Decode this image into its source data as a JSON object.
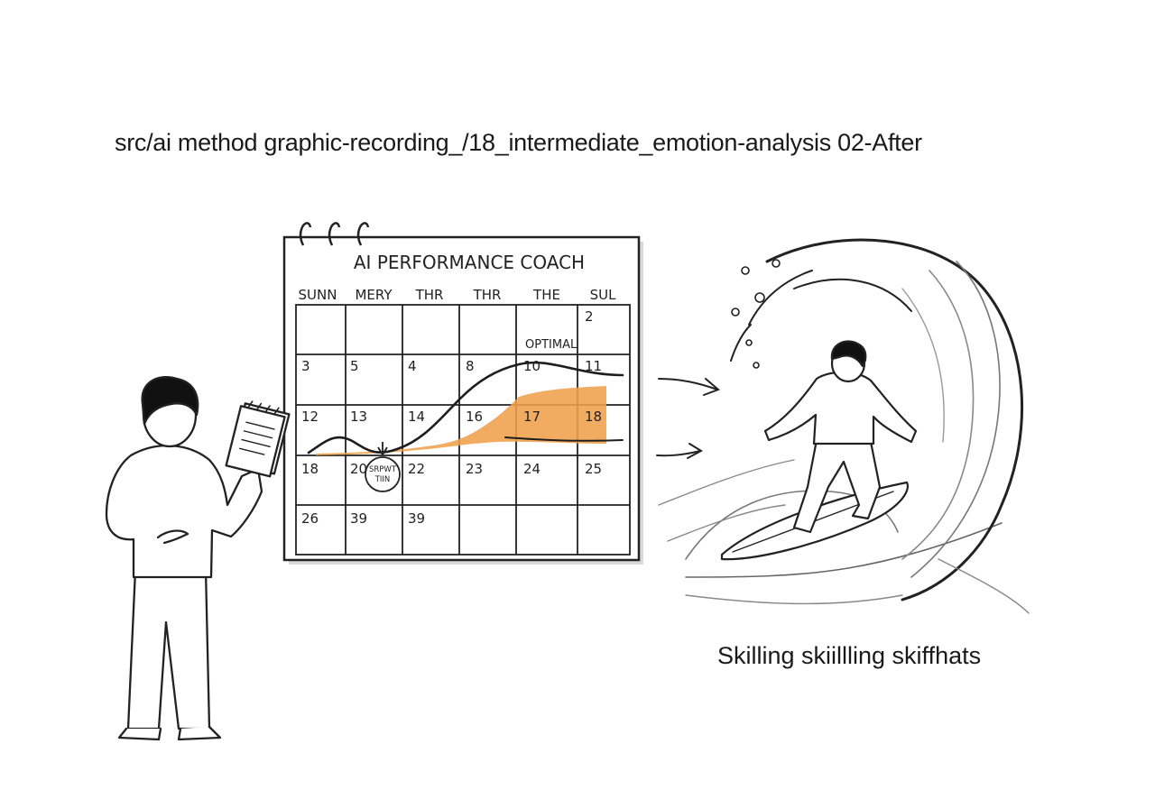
{
  "header": {
    "path": "src/ai method graphic-recording_/18_intermediate_emotion-analysis 02-After"
  },
  "calendar": {
    "title": "AI PERFORMANCE COACH",
    "days": [
      "SUNN",
      "MERY",
      "THR",
      "THR",
      "THE",
      "SUL"
    ],
    "rows": [
      [
        "",
        "",
        "",
        "",
        "",
        "2"
      ],
      [
        "3",
        "5",
        "4",
        "8",
        "10",
        "11"
      ],
      [
        "12",
        "13",
        "14",
        "16",
        "17",
        "18"
      ],
      [
        "18",
        "20",
        "22",
        "23",
        "24",
        "25"
      ],
      [
        "26",
        "39",
        "39",
        "",
        "",
        ""
      ]
    ],
    "optimal_label": "OPTIMAL",
    "circle_label_line1": "SRPWT",
    "circle_label_line2": "TIIN",
    "highlight_color": "#f0a04b"
  },
  "caption": {
    "text": "Skilling skiillling skiffhats"
  },
  "icons": [
    "person-with-notepad-icon",
    "arrow-icon",
    "surfer-icon",
    "wave-icon"
  ]
}
